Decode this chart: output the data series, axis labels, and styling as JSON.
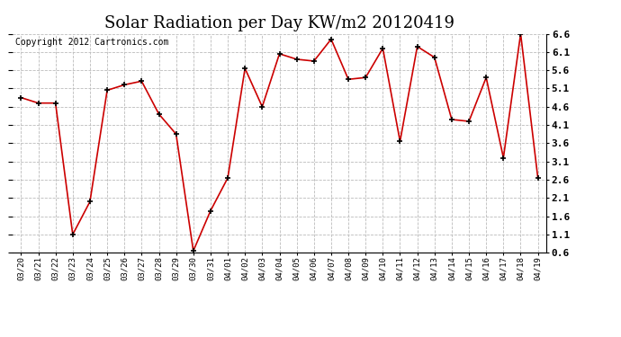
{
  "title": "Solar Radiation per Day KW/m2 20120419",
  "copyright_text": "Copyright 2012 Cartronics.com",
  "labels": [
    "03/20",
    "03/21",
    "03/22",
    "03/23",
    "03/24",
    "03/25",
    "03/26",
    "03/27",
    "03/28",
    "03/29",
    "03/30",
    "03/31",
    "04/01",
    "04/02",
    "04/03",
    "04/04",
    "04/05",
    "04/06",
    "04/07",
    "04/08",
    "04/09",
    "04/10",
    "04/11",
    "04/12",
    "04/13",
    "04/14",
    "04/15",
    "04/16",
    "04/17",
    "04/18",
    "04/19"
  ],
  "values": [
    4.85,
    4.7,
    4.7,
    1.1,
    2.0,
    5.05,
    5.2,
    5.3,
    4.4,
    3.85,
    0.65,
    1.75,
    2.65,
    5.65,
    4.6,
    6.05,
    5.9,
    5.85,
    6.45,
    5.35,
    5.4,
    6.2,
    3.65,
    6.25,
    5.95,
    4.25,
    4.2,
    5.4,
    3.2,
    6.6,
    2.65
  ],
  "line_color": "#cc0000",
  "marker_color": "#000000",
  "bg_color": "#ffffff",
  "grid_color": "#bbbbbb",
  "ylim_min": 0.6,
  "ylim_max": 6.6,
  "yticks": [
    0.6,
    1.1,
    1.6,
    2.1,
    2.6,
    3.1,
    3.6,
    4.1,
    4.6,
    5.1,
    5.6,
    6.1,
    6.6
  ],
  "ytick_labels": [
    "0.6",
    "1.1",
    "1.6",
    "2.1",
    "2.6",
    "3.1",
    "3.6",
    "4.1",
    "4.6",
    "5.1",
    "5.6",
    "6.1",
    "6.6"
  ],
  "title_fontsize": 13,
  "copyright_fontsize": 7
}
